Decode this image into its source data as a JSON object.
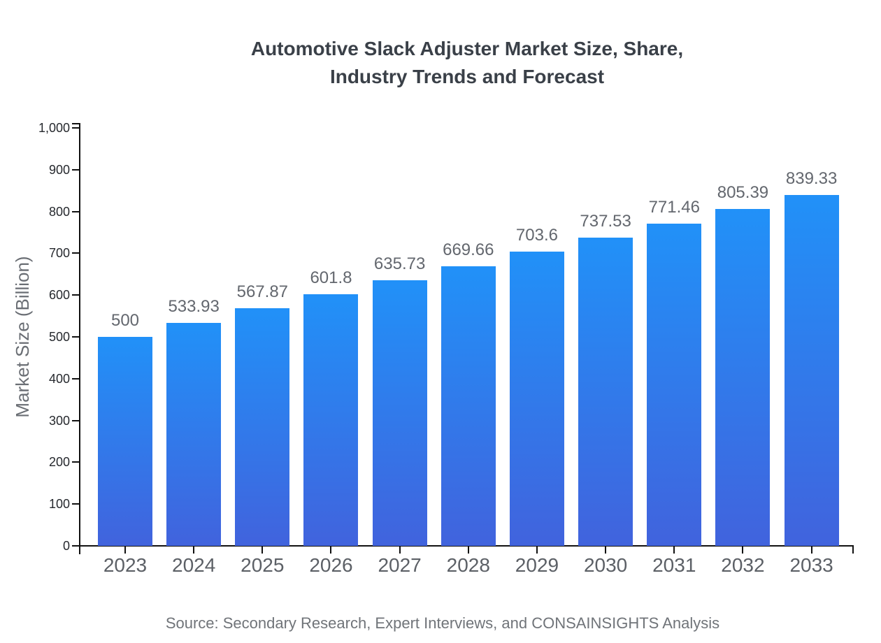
{
  "title_line1": "Automotive Slack Adjuster Market Size, Share,",
  "title_line2": "Industry Trends and Forecast",
  "source_note": "Source: Secondary Research, Expert Interviews, and CONSAINSIGHTS Analysis",
  "chart_data": {
    "type": "bar",
    "title": "Automotive Slack Adjuster Market Size, Share, Industry Trends and Forecast",
    "categories": [
      "2023",
      "2024",
      "2025",
      "2026",
      "2027",
      "2028",
      "2029",
      "2030",
      "2031",
      "2032",
      "2033"
    ],
    "values": [
      500,
      533.93,
      567.87,
      601.8,
      635.73,
      669.66,
      703.6,
      737.53,
      771.46,
      805.39,
      839.33
    ],
    "value_labels": [
      "500",
      "533.93",
      "567.87",
      "601.8",
      "635.73",
      "669.66",
      "703.6",
      "737.53",
      "771.46",
      "805.39",
      "839.33"
    ],
    "xlabel": "",
    "ylabel": "Market Size (Billion)",
    "ylim": [
      0,
      1000
    ],
    "y_tick_interval": 100,
    "y_tick_labels": [
      "0",
      "100",
      "200",
      "300",
      "400",
      "500",
      "600",
      "700",
      "800",
      "900",
      "1,000"
    ],
    "grid": false,
    "legend_position": "none",
    "colors": {
      "bar_gradient_top": "#2191F8",
      "bar_gradient_bottom": "#4163DD",
      "axis": "#111111",
      "value_label": "#63676e",
      "x_label": "#5c6066",
      "y_label": "#26292e",
      "title": "#3a4048",
      "source": "#707479"
    }
  }
}
